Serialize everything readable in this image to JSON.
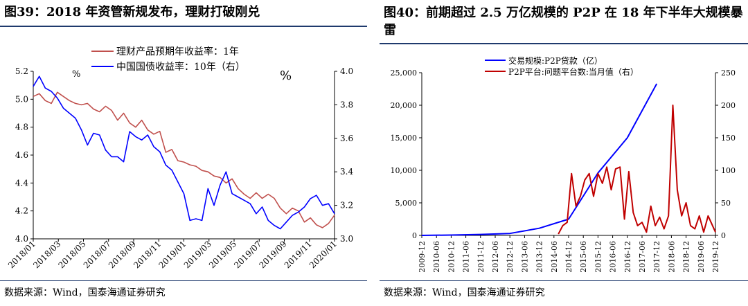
{
  "left": {
    "title": "图39：2018 年资管新规发布，理财打破刚兑",
    "source": "数据来源：Wind，国泰海通证券研究",
    "unit_left": "%",
    "unit_right": "%",
    "colors": {
      "series1": "#c0504d",
      "series2": "#0000ff"
    }
  },
  "right": {
    "title": "图40：前期超过 2.5 万亿规模的 P2P 在 18 年下半年大规模暴雷",
    "source": "数据来源：Wind，国泰海通证券研究",
    "colors": {
      "series1": "#0000ff",
      "series2": "#c00000"
    }
  },
  "chart_data": [
    {
      "type": "line",
      "legend_position": "top",
      "grid": false,
      "x_ticks": [
        "2018/01",
        "2018/03",
        "2018/05",
        "2018/07",
        "2018/09",
        "2018/11",
        "2019/01",
        "2019/03",
        "2019/05",
        "2019/07",
        "2019/09",
        "2019/11",
        "2020/01"
      ],
      "x_range": [
        0,
        25
      ],
      "y_left": {
        "range": [
          4.0,
          5.2
        ],
        "ticks": [
          "4.0",
          "4.2",
          "4.4",
          "4.6",
          "4.8",
          "5.0",
          "5.2"
        ]
      },
      "y_right": {
        "range": [
          3.0,
          4.0
        ],
        "ticks": [
          "3.0",
          "3.2",
          "3.4",
          "3.6",
          "3.8",
          "4.0"
        ]
      },
      "series": [
        {
          "name": "理财产品预期年收益率：1年",
          "axis": "left",
          "x": [
            0,
            0.5,
            1,
            1.5,
            2,
            2.5,
            3,
            3.5,
            4,
            4.5,
            5,
            5.5,
            6,
            6.5,
            7,
            7.5,
            8,
            8.5,
            9,
            9.5,
            10,
            10.5,
            11,
            11.5,
            12,
            12.5,
            13,
            13.5,
            14,
            14.5,
            15,
            15.5,
            16,
            16.5,
            17,
            17.5,
            18,
            18.5,
            19,
            19.5,
            20,
            20.5,
            21,
            21.5,
            22,
            22.5,
            23,
            23.5,
            24,
            24.5,
            25
          ],
          "y": [
            5.02,
            5.04,
            4.99,
            4.97,
            5.05,
            5.02,
            4.99,
            4.97,
            4.96,
            4.97,
            4.93,
            4.91,
            4.95,
            4.92,
            4.85,
            4.9,
            4.83,
            4.8,
            4.85,
            4.78,
            4.75,
            4.77,
            4.62,
            4.64,
            4.56,
            4.55,
            4.53,
            4.52,
            4.49,
            4.48,
            4.45,
            4.44,
            4.4,
            4.43,
            4.36,
            4.32,
            4.29,
            4.33,
            4.29,
            4.32,
            4.29,
            4.22,
            4.18,
            4.22,
            4.2,
            4.12,
            4.15,
            4.1,
            4.08,
            4.11,
            4.17
          ]
        },
        {
          "name": "中国国债收益率：10年（右）",
          "axis": "right",
          "x": [
            0,
            0.5,
            1,
            1.5,
            2,
            2.5,
            3,
            3.5,
            4,
            4.5,
            5,
            5.5,
            6,
            6.5,
            7,
            7.5,
            8,
            8.5,
            9,
            9.5,
            10,
            10.5,
            11,
            11.5,
            12,
            12.5,
            13,
            13.5,
            14,
            14.5,
            15,
            15.5,
            16,
            16.5,
            17,
            17.5,
            18,
            18.5,
            19,
            19.5,
            20,
            20.5,
            21,
            21.5,
            22,
            22.5,
            23,
            23.5,
            24,
            24.5,
            25
          ],
          "y": [
            3.91,
            3.97,
            3.9,
            3.88,
            3.84,
            3.78,
            3.75,
            3.72,
            3.65,
            3.56,
            3.63,
            3.62,
            3.53,
            3.49,
            3.49,
            3.46,
            3.64,
            3.61,
            3.59,
            3.62,
            3.55,
            3.52,
            3.44,
            3.41,
            3.34,
            3.27,
            3.11,
            3.12,
            3.11,
            3.3,
            3.2,
            3.32,
            3.4,
            3.27,
            3.25,
            3.23,
            3.21,
            3.15,
            3.19,
            3.11,
            3.08,
            3.06,
            3.1,
            3.14,
            3.16,
            3.19,
            3.24,
            3.26,
            3.2,
            3.21,
            3.15
          ]
        }
      ]
    },
    {
      "type": "line",
      "legend_position": "top",
      "grid": false,
      "x_ticks": [
        "2009-12",
        "2010-06",
        "2010-12",
        "2011-06",
        "2011-12",
        "2012-06",
        "2012-12",
        "2013-06",
        "2013-12",
        "2014-06",
        "2014-12",
        "2015-06",
        "2015-12",
        "2016-06",
        "2016-12",
        "2017-06",
        "2017-12",
        "2018-06",
        "2018-12",
        "2019-06",
        "2019-12"
      ],
      "x_range": [
        0,
        20
      ],
      "y_left": {
        "range": [
          0,
          25000
        ],
        "ticks": [
          "0",
          "5,000",
          "10,000",
          "15,000",
          "20,000",
          "25,000"
        ]
      },
      "y_right": {
        "range": [
          0,
          250
        ],
        "ticks": [
          "0",
          "50",
          "100",
          "150",
          "200",
          "250"
        ]
      },
      "series": [
        {
          "name": "交易规模:P2P贷款（亿）",
          "axis": "left",
          "x": [
            0,
            2,
            4,
            6,
            8,
            10,
            12,
            14,
            16
          ],
          "y": [
            0,
            50,
            150,
            300,
            1100,
            2500,
            9600,
            15000,
            23300
          ]
        },
        {
          "name": "P2P平台:问题平台数:当月值（右）",
          "axis": "right",
          "x": [
            9.3,
            9.6,
            9.9,
            10.2,
            10.5,
            10.8,
            11.1,
            11.4,
            11.7,
            12.0,
            12.3,
            12.6,
            12.9,
            13.2,
            13.5,
            13.8,
            14.1,
            14.4,
            14.7,
            15.0,
            15.3,
            15.6,
            15.9,
            16.2,
            16.5,
            16.8,
            17.1,
            17.4,
            17.7,
            18.0,
            18.3,
            18.6,
            18.9,
            19.2,
            19.5,
            19.8,
            20.0
          ],
          "y": [
            2,
            15,
            20,
            95,
            45,
            60,
            85,
            95,
            60,
            95,
            80,
            105,
            70,
            102,
            105,
            25,
            98,
            35,
            15,
            20,
            5,
            45,
            15,
            28,
            10,
            30,
            200,
            70,
            30,
            50,
            15,
            10,
            30,
            5,
            30,
            15,
            5
          ]
        }
      ]
    }
  ]
}
